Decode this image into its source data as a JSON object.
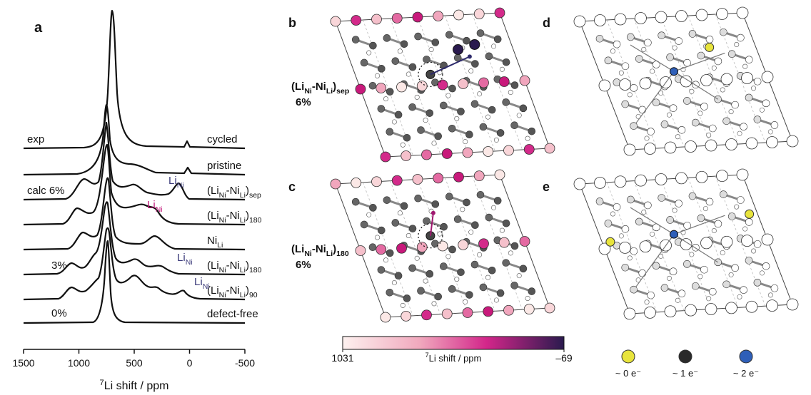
{
  "panel_a": {
    "label": "a",
    "x_axis": {
      "label": [
        "7",
        "Li shift / ppm"
      ],
      "xlim": [
        1500,
        -500
      ],
      "xticks": [
        1500,
        1000,
        500,
        0,
        -500
      ]
    },
    "spectra": [
      {
        "name": [
          "cycled"
        ],
        "left": "exp"
      },
      {
        "name": [
          "pristine"
        ]
      },
      {
        "name": [
          "(Li",
          "Ni",
          "-Ni",
          "Li",
          ")",
          "sep"
        ],
        "left": "calc  6%",
        "peak_label": [
          "Li",
          "Ni"
        ],
        "peak_label_color": "#3b3a7a"
      },
      {
        "name": [
          "(Li",
          "Ni",
          "-Ni",
          "Li",
          ")",
          "180"
        ],
        "peak_label": [
          "Li",
          "Ni"
        ],
        "peak_label_color": "#c2187a"
      },
      {
        "name": [
          "Ni",
          "Li"
        ]
      },
      {
        "name": [
          "(Li",
          "Ni",
          "-Ni",
          "Li",
          ")",
          "180"
        ],
        "left": "3%",
        "peak_label": [
          "Li",
          "Ni"
        ],
        "peak_label_color": "#3b3a7a"
      },
      {
        "name": [
          "(Li",
          "Ni",
          "-Ni",
          "Li",
          ")",
          "90"
        ],
        "peak_label": [
          "Li",
          "Ni"
        ],
        "peak_label_color": "#3b3a7a"
      },
      {
        "name": [
          "defect-free"
        ],
        "left": "0%"
      }
    ]
  },
  "panel_b": {
    "label": "b",
    "defect": [
      "(Li",
      "Ni",
      "-Ni",
      "Li",
      ")",
      "sep"
    ],
    "fraction": "6%"
  },
  "panel_c": {
    "label": "c",
    "defect": [
      "(Li",
      "Ni",
      "-Ni",
      "Li",
      ")",
      "180"
    ],
    "fraction": "6%"
  },
  "panel_d": {
    "label": "d"
  },
  "panel_e": {
    "label": "e"
  },
  "colorbar": {
    "title": [
      "7",
      "Li shift / ppm"
    ],
    "range": [
      1031,
      -69
    ],
    "ticks": [
      1031,
      {
        "value": -69,
        "label": "–69"
      }
    ]
  },
  "legend": [
    {
      "label": "~ 0 e⁻",
      "color": "#e8e43c"
    },
    {
      "label": "~ 1 e⁻",
      "color": "#2a2a2a"
    },
    {
      "label": "~ 2 e⁻",
      "color": "#2f5fb8"
    }
  ]
}
